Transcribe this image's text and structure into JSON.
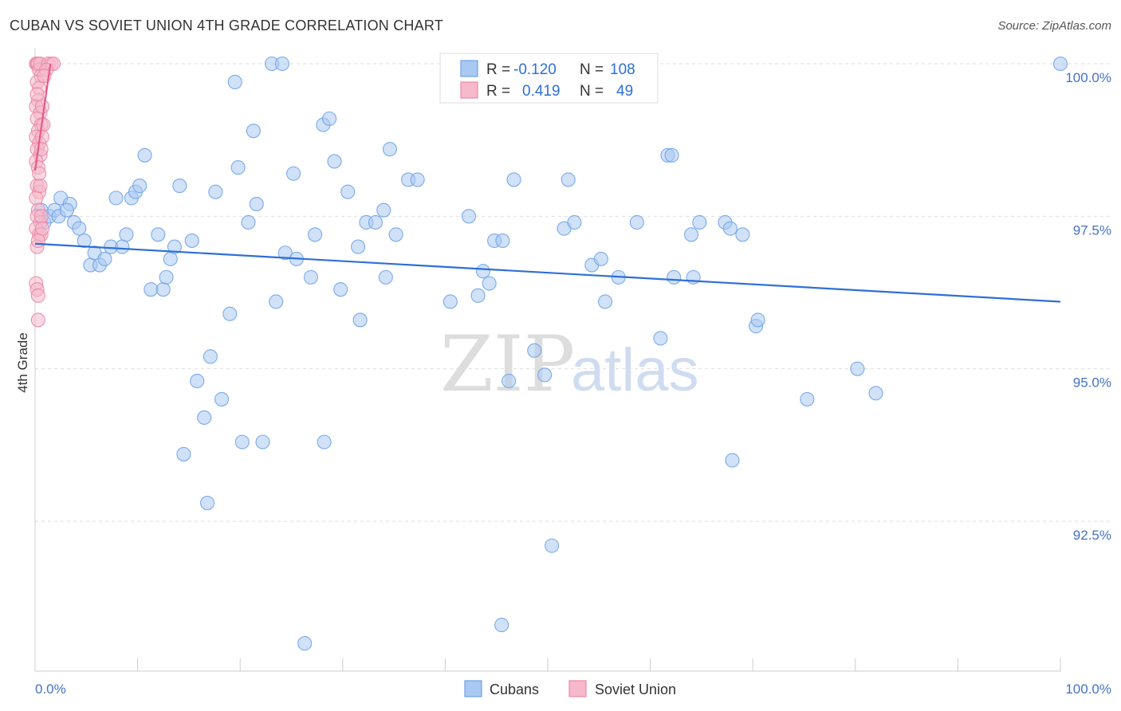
{
  "title": "CUBAN VS SOVIET UNION 4TH GRADE CORRELATION CHART",
  "source": "Source: ZipAtlas.com",
  "chart_data": {
    "type": "scatter",
    "title": "CUBAN VS SOVIET UNION 4TH GRADE CORRELATION CHART",
    "xlabel": "",
    "ylabel": "4th Grade",
    "xlim": [
      0,
      100
    ],
    "ylim": [
      90.1,
      100.4
    ],
    "x_tick_labels": [
      "0.0%",
      "100.0%"
    ],
    "y_ticks": [
      {
        "value": 92.5,
        "label": "92.5%"
      },
      {
        "value": 95.0,
        "label": "95.0%"
      },
      {
        "value": 97.5,
        "label": "97.5%"
      },
      {
        "value": 100.0,
        "label": "100.0%"
      }
    ],
    "grid": true,
    "legend_position": "top-center",
    "watermark": {
      "zip": "ZIP",
      "atlas": "atlas"
    },
    "stats": [
      {
        "name": "Cubans",
        "r_label": "R =",
        "r": "-0.120",
        "n_label": "N =",
        "n": "108"
      },
      {
        "name": "Soviet Union",
        "r_label": "R =",
        "r": "0.419",
        "n_label": "N =",
        "n": "49"
      }
    ],
    "series": [
      {
        "name": "Cubans",
        "color": "#6fa3e8",
        "fill": "#a9c8f2",
        "line_color": "#2e6fd6",
        "trend": {
          "x": [
            0,
            100
          ],
          "y": [
            97.05,
            96.1
          ]
        },
        "points": [
          [
            0.6,
            97.6
          ],
          [
            0.9,
            97.4
          ],
          [
            1.4,
            97.5
          ],
          [
            1.9,
            97.6
          ],
          [
            2.3,
            97.5
          ],
          [
            2.5,
            97.8
          ],
          [
            3.4,
            97.7
          ],
          [
            3.1,
            97.6
          ],
          [
            3.8,
            97.4
          ],
          [
            4.3,
            97.3
          ],
          [
            4.8,
            97.1
          ],
          [
            5.4,
            96.7
          ],
          [
            5.8,
            96.9
          ],
          [
            6.3,
            96.7
          ],
          [
            6.8,
            96.8
          ],
          [
            7.4,
            97.0
          ],
          [
            7.9,
            97.8
          ],
          [
            8.5,
            97.0
          ],
          [
            8.9,
            97.2
          ],
          [
            9.4,
            97.8
          ],
          [
            9.8,
            97.9
          ],
          [
            10.2,
            98.0
          ],
          [
            10.7,
            98.5
          ],
          [
            11.3,
            96.3
          ],
          [
            12.0,
            97.2
          ],
          [
            12.5,
            96.3
          ],
          [
            12.8,
            96.5
          ],
          [
            13.2,
            96.8
          ],
          [
            13.6,
            97.0
          ],
          [
            14.1,
            98.0
          ],
          [
            14.5,
            93.6
          ],
          [
            15.3,
            97.1
          ],
          [
            15.8,
            94.8
          ],
          [
            16.5,
            94.2
          ],
          [
            16.8,
            92.8
          ],
          [
            17.1,
            95.2
          ],
          [
            17.6,
            97.9
          ],
          [
            18.2,
            94.5
          ],
          [
            19.0,
            95.9
          ],
          [
            19.5,
            99.7
          ],
          [
            19.8,
            98.3
          ],
          [
            20.2,
            93.8
          ],
          [
            20.8,
            97.4
          ],
          [
            21.3,
            98.9
          ],
          [
            21.6,
            97.7
          ],
          [
            22.2,
            93.8
          ],
          [
            23.1,
            100.0
          ],
          [
            24.1,
            100.0
          ],
          [
            23.5,
            96.1
          ],
          [
            24.4,
            96.9
          ],
          [
            25.2,
            98.2
          ],
          [
            25.5,
            96.8
          ],
          [
            26.3,
            90.5
          ],
          [
            26.9,
            96.5
          ],
          [
            27.3,
            97.2
          ],
          [
            28.1,
            99.0
          ],
          [
            28.2,
            93.8
          ],
          [
            28.7,
            99.1
          ],
          [
            29.2,
            98.4
          ],
          [
            29.8,
            96.3
          ],
          [
            30.5,
            97.9
          ],
          [
            31.5,
            97.0
          ],
          [
            31.7,
            95.8
          ],
          [
            32.3,
            97.4
          ],
          [
            33.2,
            97.4
          ],
          [
            34.2,
            96.5
          ],
          [
            34.0,
            97.6
          ],
          [
            34.6,
            98.6
          ],
          [
            35.2,
            97.2
          ],
          [
            36.4,
            98.1
          ],
          [
            37.3,
            98.1
          ],
          [
            40.5,
            96.1
          ],
          [
            42.3,
            97.5
          ],
          [
            43.2,
            96.2
          ],
          [
            43.7,
            96.6
          ],
          [
            44.3,
            96.4
          ],
          [
            44.8,
            97.1
          ],
          [
            45.6,
            97.1
          ],
          [
            45.5,
            90.8
          ],
          [
            46.2,
            94.8
          ],
          [
            46.7,
            98.1
          ],
          [
            48.7,
            95.3
          ],
          [
            49.7,
            94.9
          ],
          [
            50.4,
            92.1
          ],
          [
            51.6,
            97.3
          ],
          [
            52.0,
            98.1
          ],
          [
            52.6,
            97.4
          ],
          [
            54.3,
            96.7
          ],
          [
            55.2,
            96.8
          ],
          [
            55.6,
            96.1
          ],
          [
            56.9,
            96.5
          ],
          [
            58.7,
            97.4
          ],
          [
            61.0,
            95.5
          ],
          [
            61.7,
            98.5
          ],
          [
            62.1,
            98.5
          ],
          [
            62.3,
            96.5
          ],
          [
            64.0,
            97.2
          ],
          [
            64.2,
            96.5
          ],
          [
            64.8,
            97.4
          ],
          [
            67.3,
            97.4
          ],
          [
            67.8,
            97.3
          ],
          [
            68.0,
            93.5
          ],
          [
            69.0,
            97.2
          ],
          [
            70.3,
            95.7
          ],
          [
            70.5,
            95.8
          ],
          [
            75.3,
            94.5
          ],
          [
            80.2,
            95.0
          ],
          [
            82.0,
            94.6
          ],
          [
            100.0,
            100.0
          ]
        ]
      },
      {
        "name": "Soviet Union",
        "color": "#e88aa8",
        "fill": "#f6b8cb",
        "line_color": "#e65a8a",
        "trend": {
          "x": [
            0.0,
            1.5
          ],
          "y": [
            98.25,
            100.0
          ]
        },
        "points": [
          [
            0.1,
            100.0
          ],
          [
            0.2,
            100.0
          ],
          [
            0.3,
            100.0
          ],
          [
            0.4,
            99.9
          ],
          [
            0.5,
            100.0
          ],
          [
            0.6,
            99.8
          ],
          [
            0.2,
            99.7
          ],
          [
            0.4,
            99.6
          ],
          [
            0.3,
            99.4
          ],
          [
            0.1,
            99.3
          ],
          [
            0.5,
            99.2
          ],
          [
            0.2,
            99.1
          ],
          [
            0.6,
            99.0
          ],
          [
            0.3,
            98.9
          ],
          [
            0.1,
            98.8
          ],
          [
            0.4,
            98.7
          ],
          [
            0.2,
            98.6
          ],
          [
            0.5,
            98.5
          ],
          [
            0.1,
            98.4
          ],
          [
            0.3,
            98.3
          ],
          [
            0.2,
            98.0
          ],
          [
            0.4,
            97.9
          ],
          [
            0.1,
            97.8
          ],
          [
            0.3,
            97.6
          ],
          [
            0.2,
            97.5
          ],
          [
            0.5,
            97.4
          ],
          [
            0.1,
            97.3
          ],
          [
            0.4,
            97.2
          ],
          [
            0.6,
            97.2
          ],
          [
            0.2,
            97.0
          ],
          [
            0.1,
            96.4
          ],
          [
            0.2,
            96.3
          ],
          [
            0.3,
            96.2
          ],
          [
            0.3,
            95.8
          ],
          [
            1.3,
            100.0
          ],
          [
            1.6,
            100.0
          ],
          [
            1.8,
            100.0
          ],
          [
            1.1,
            99.9
          ],
          [
            0.9,
            99.8
          ],
          [
            0.7,
            99.3
          ],
          [
            0.8,
            99.0
          ],
          [
            0.7,
            98.8
          ],
          [
            0.6,
            98.6
          ],
          [
            0.5,
            98.0
          ],
          [
            0.6,
            97.5
          ],
          [
            0.7,
            97.3
          ],
          [
            0.4,
            98.2
          ],
          [
            0.3,
            97.1
          ],
          [
            0.2,
            99.5
          ]
        ]
      }
    ]
  }
}
